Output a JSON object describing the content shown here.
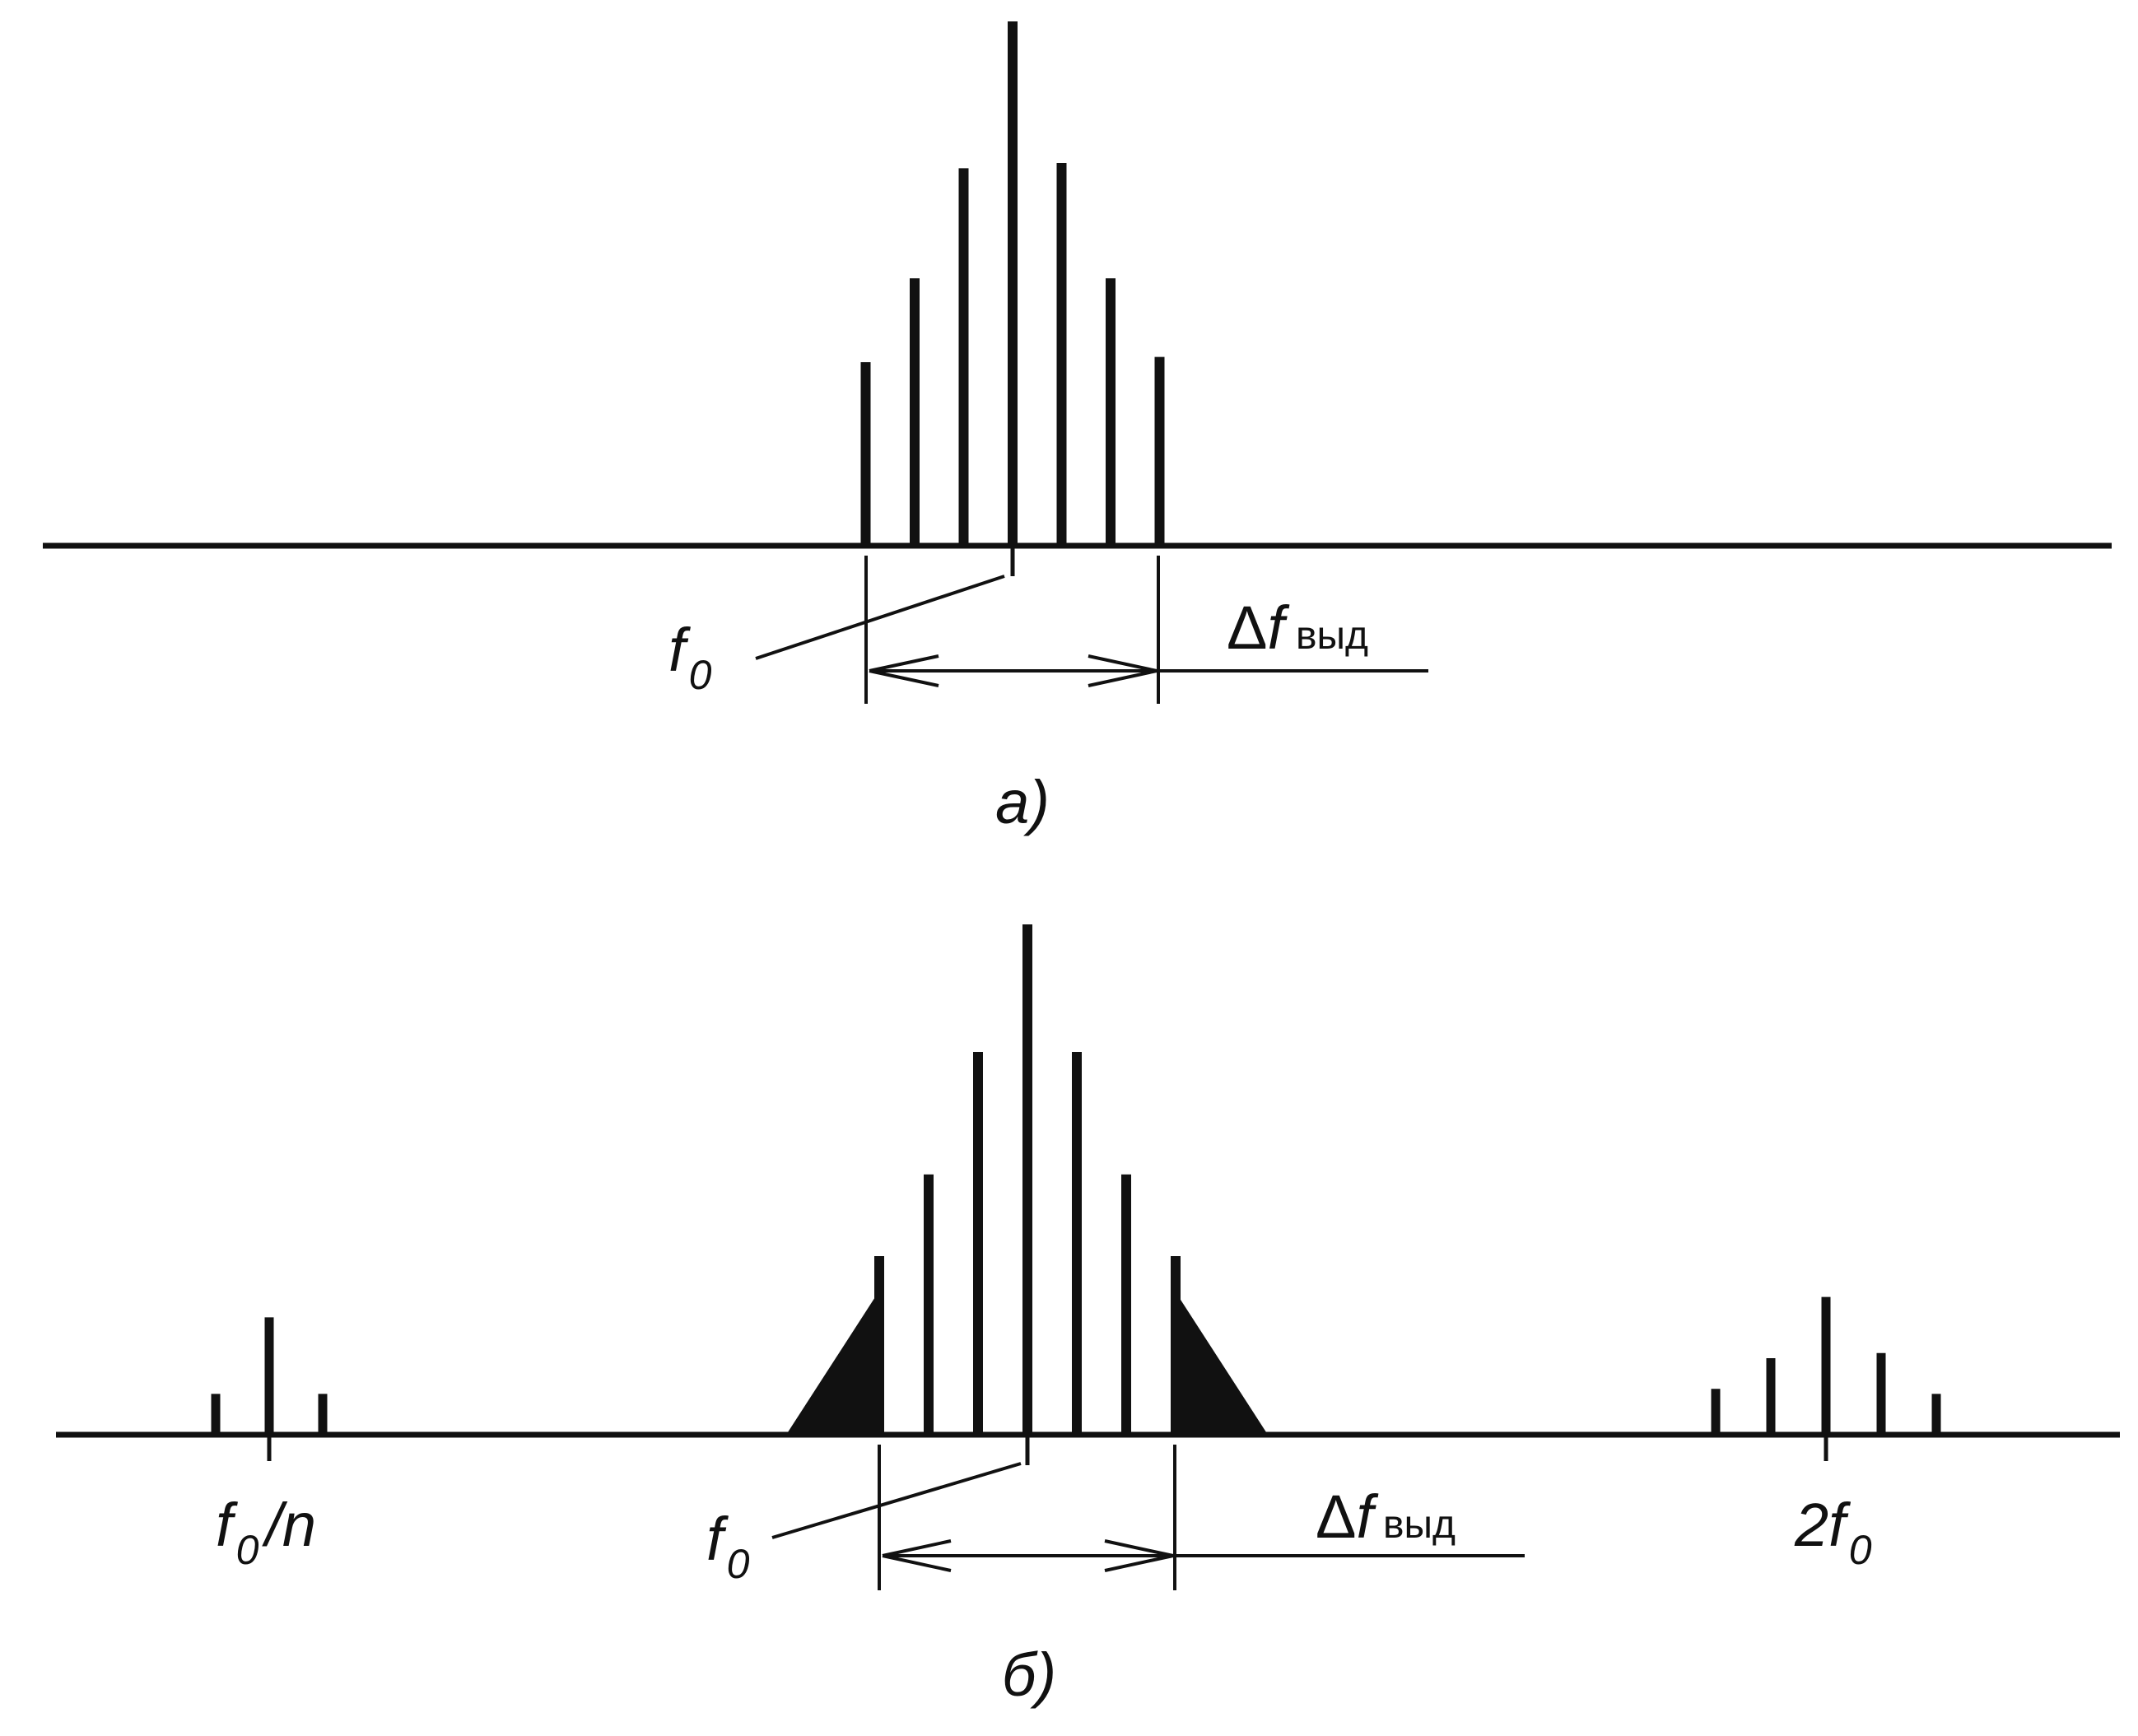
{
  "colors": {
    "ink": "#111111",
    "background": "#ffffff"
  },
  "panel_a": {
    "caption": "а)",
    "center_label": {
      "main": "f",
      "sub": "0"
    },
    "bandwidth_label": {
      "delta": "Δ",
      "main": "f",
      "sub": "выд"
    },
    "lines": [
      {
        "offset": -3,
        "amplitude": 0.35
      },
      {
        "offset": -2,
        "amplitude": 0.51
      },
      {
        "offset": -1,
        "amplitude": 0.72
      },
      {
        "offset": 0,
        "amplitude": 1.0
      },
      {
        "offset": 1,
        "amplitude": 0.73
      },
      {
        "offset": 2,
        "amplitude": 0.51
      },
      {
        "offset": 3,
        "amplitude": 0.36
      }
    ]
  },
  "panel_b": {
    "caption": "б)",
    "center_label": {
      "main": "f",
      "sub": "0"
    },
    "bandwidth_label": {
      "delta": "Δ",
      "main": "f",
      "sub": "выд"
    },
    "subharmonic_label": {
      "main": "f",
      "sub": "0",
      "tail": "/n"
    },
    "harmonic_label": {
      "coef": "2",
      "main": "f",
      "sub": "0"
    },
    "center_lines": [
      {
        "offset": -3,
        "amplitude": 0.35
      },
      {
        "offset": -2,
        "amplitude": 0.51
      },
      {
        "offset": -1,
        "amplitude": 0.75
      },
      {
        "offset": 0,
        "amplitude": 1.0
      },
      {
        "offset": 1,
        "amplitude": 0.75
      },
      {
        "offset": 2,
        "amplitude": 0.51
      },
      {
        "offset": 3,
        "amplitude": 0.35
      }
    ],
    "subharmonic_lines": [
      {
        "offset": -1,
        "amplitude": 0.08
      },
      {
        "offset": 0,
        "amplitude": 0.23
      },
      {
        "offset": 1,
        "amplitude": 0.08
      }
    ],
    "harmonic_lines": [
      {
        "offset": -2,
        "amplitude": 0.09
      },
      {
        "offset": -1,
        "amplitude": 0.15
      },
      {
        "offset": 0,
        "amplitude": 0.27
      },
      {
        "offset": 1,
        "amplitude": 0.16
      },
      {
        "offset": 2,
        "amplitude": 0.08
      }
    ]
  }
}
